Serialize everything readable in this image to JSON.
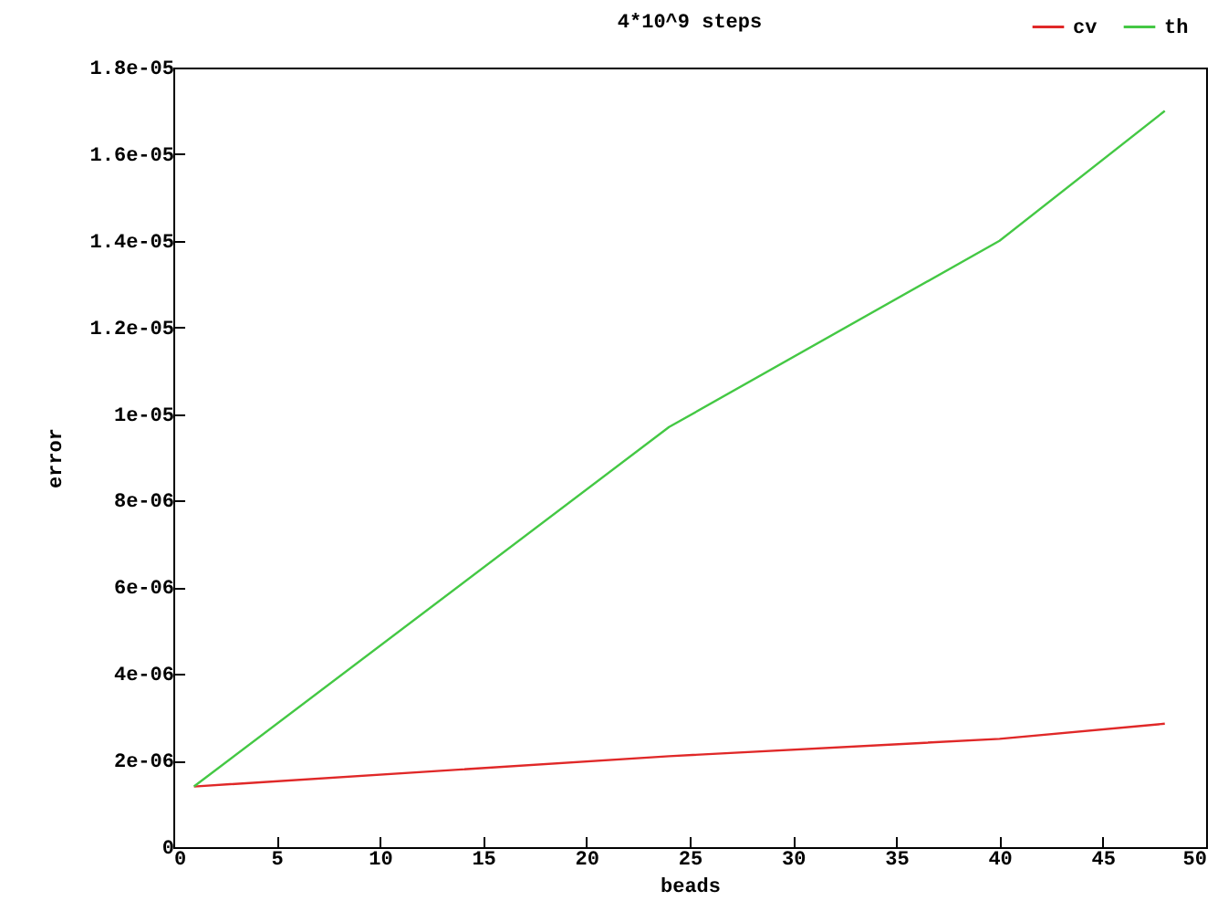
{
  "chart_data": {
    "type": "line",
    "title": "4*10^9 steps",
    "xlabel": "beads",
    "ylabel": "error",
    "x": [
      1,
      24,
      40,
      48
    ],
    "series": [
      {
        "name": "cv",
        "color": "#e02828",
        "values": [
          1.4e-06,
          2.1e-06,
          2.5e-06,
          2.85e-06
        ]
      },
      {
        "name": "th",
        "color": "#44c844",
        "values": [
          1.4e-06,
          9.7e-06,
          1.4e-05,
          1.7e-05
        ]
      }
    ],
    "xlim": [
      0,
      50
    ],
    "xticks": [
      0,
      5,
      10,
      15,
      20,
      25,
      30,
      35,
      40,
      45,
      50
    ],
    "ylim": [
      0,
      1.8e-05
    ],
    "yticks": [
      0,
      {
        "value": 2e-06,
        "label": "2e-06"
      },
      {
        "value": 4e-06,
        "label": "4e-06"
      },
      {
        "value": 6e-06,
        "label": "6e-06"
      },
      {
        "value": 8e-06,
        "label": "8e-06"
      },
      {
        "value": 1e-05,
        "label": "1e-05"
      },
      {
        "value": 1.2e-05,
        "label": "1.2e-05"
      },
      {
        "value": 1.4e-05,
        "label": "1.4e-05"
      },
      {
        "value": 1.6e-05,
        "label": "1.6e-05"
      },
      {
        "value": 1.8e-05,
        "label": "1.8e-05"
      }
    ],
    "legend": "top right",
    "grid": false,
    "marker": "none",
    "line_style": "solid"
  }
}
